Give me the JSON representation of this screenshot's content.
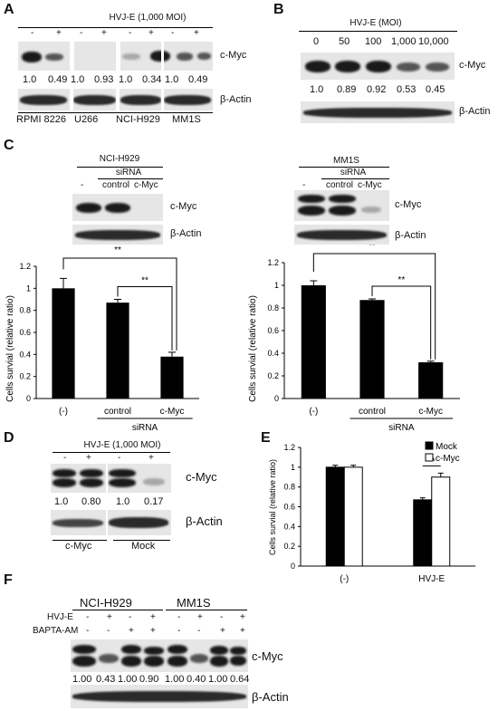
{
  "panel_labels": {
    "A": "A",
    "B": "B",
    "C": "C",
    "D": "D",
    "E": "E",
    "F": "F"
  },
  "panelA": {
    "treatment": "HVJ-E (1,000 MOI)",
    "signs": [
      "-",
      "+",
      "-",
      "+",
      "-",
      "+",
      "-",
      "+"
    ],
    "ratios": [
      "1.0",
      "0.49",
      "1.0",
      "0.93",
      "1.0",
      "0.34",
      "1.0",
      "0.49"
    ],
    "cell_lines": [
      "RPMI 8226",
      "U266",
      "NCI-H929",
      "MM1S"
    ],
    "target": "c-Myc",
    "control": "β-Actin"
  },
  "panelB": {
    "treatment": "HVJ-E (MOI)",
    "doses": [
      "0",
      "50",
      "100",
      "1,000",
      "10,000"
    ],
    "ratios": [
      "1.0",
      "0.89",
      "0.92",
      "0.53",
      "0.45"
    ],
    "target": "c-Myc",
    "control": "β-Actin"
  },
  "panelC": {
    "left": {
      "cell": "NCI-H929",
      "sirna": "siRNA",
      "lanes": [
        "-",
        "control",
        "c-Myc"
      ],
      "target": "c-Myc",
      "control": "β-Actin",
      "sig1": "**",
      "sig2": "**"
    },
    "right": {
      "cell": "MM1S",
      "sirna": "siRNA",
      "lanes": [
        "-",
        "control",
        "c-Myc"
      ],
      "target": "c-Myc",
      "control": "β-Actin",
      "sig1": "**",
      "sig2": "**"
    }
  },
  "panelD": {
    "treatment": "HVJ-E (1,000 MOI)",
    "signs": [
      "-",
      "+",
      "-",
      "+"
    ],
    "ratios": [
      "1.0",
      "0.80",
      "1.0",
      "0.17"
    ],
    "groups": [
      "c-Myc",
      "Mock"
    ],
    "target": "c-Myc",
    "control": "β-Actin"
  },
  "panelF": {
    "cells": [
      "NCI-H929",
      "MM1S"
    ],
    "row1_label": "HVJ-E",
    "row2_label": "BAPTA-AM",
    "row1": [
      "-",
      "+",
      "-",
      "+",
      "-",
      "+",
      "-",
      "+"
    ],
    "row2": [
      "-",
      "-",
      "+",
      "+",
      "-",
      "-",
      "+",
      "+"
    ],
    "ratios": [
      "1.00",
      "0.43",
      "1.00",
      "0.90",
      "1.00",
      "0.40",
      "1.00",
      "0.64"
    ],
    "target": "c-Myc",
    "control": "β-Actin"
  },
  "chart_data": [
    {
      "type": "bar",
      "panel": "C-left",
      "categories": [
        "(-)",
        "control",
        "c-Myc"
      ],
      "group_label": "siRNA",
      "values": [
        1.0,
        0.87,
        0.38
      ],
      "errors": [
        0.09,
        0.03,
        0.04
      ],
      "ylabel": "Cells survial (relative ratio)",
      "ylim": [
        0,
        1.2
      ],
      "yticks": [
        "0",
        "0.2",
        "0.4",
        "0.6",
        "0.8",
        "1",
        "1.2"
      ],
      "color": "#000000",
      "significance": [
        "**",
        "**"
      ]
    },
    {
      "type": "bar",
      "panel": "C-right",
      "categories": [
        "(-)",
        "control",
        "c-Myc"
      ],
      "group_label": "siRNA",
      "values": [
        1.0,
        0.87,
        0.32
      ],
      "errors": [
        0.04,
        0.01,
        0.01
      ],
      "ylabel": "Cells survial (relative ratio)",
      "ylim": [
        0,
        1.2
      ],
      "yticks": [
        "0",
        "0.2",
        "0.4",
        "0.6",
        "0.8",
        "1",
        "1.2"
      ],
      "color": "#000000",
      "significance": [
        "**",
        "**"
      ]
    },
    {
      "type": "bar",
      "panel": "E",
      "categories": [
        "(-)",
        "HVJ-E"
      ],
      "series": [
        {
          "name": "Mock",
          "values": [
            1.0,
            0.67
          ],
          "errors": [
            0.02,
            0.02
          ],
          "color": "#000000"
        },
        {
          "name": "c-Myc",
          "values": [
            1.0,
            0.9
          ],
          "errors": [
            0.02,
            0.04
          ],
          "color": "#ffffff"
        }
      ],
      "ylabel": "Cells survial (relative ratio)",
      "ylim": [
        0,
        1.2
      ],
      "yticks": [
        "0",
        "0.2",
        "0.4",
        "0.6",
        "0.8",
        "1",
        "1.2"
      ],
      "legend": "top-right",
      "significance": [
        "**"
      ]
    }
  ]
}
